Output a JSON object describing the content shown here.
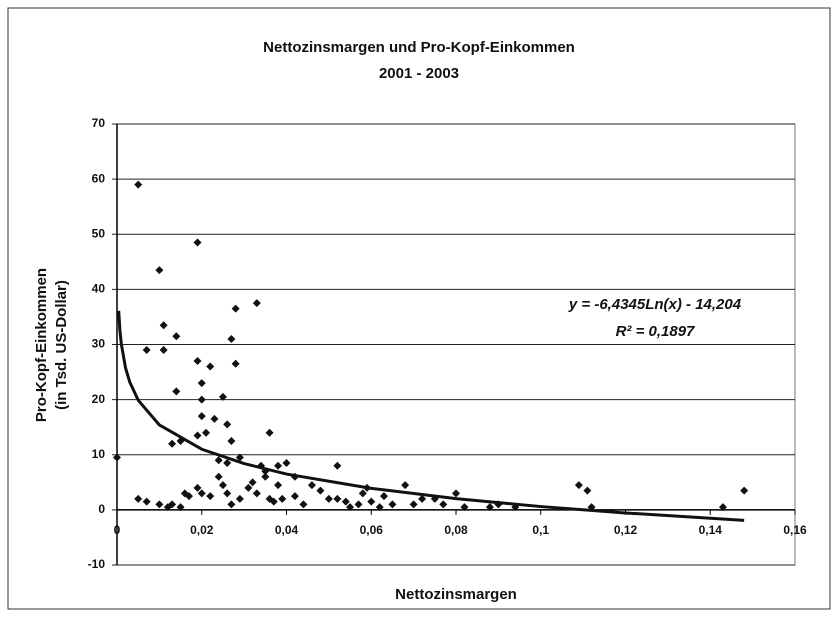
{
  "chart_data": {
    "type": "scatter",
    "title": [
      "Nettozinsmargen und Pro-Kopf-Einkommen",
      "2001 - 2003"
    ],
    "x_label": "Nettozinsmargen",
    "y_label": [
      "Pro-Kopf-Einkommen",
      "(in Tsd. US-Dollar)"
    ],
    "annotations": [
      "y = -6,4345Ln(x) - 14,204",
      "R² = 0,1897"
    ],
    "xlim": [
      0,
      0.16
    ],
    "xticks": [
      {
        "value": 0,
        "label": "0"
      },
      {
        "value": 0.02,
        "label": "0,02"
      },
      {
        "value": 0.04,
        "label": "0,04"
      },
      {
        "value": 0.06,
        "label": "0,06"
      },
      {
        "value": 0.08,
        "label": "0,08"
      },
      {
        "value": 0.1,
        "label": "0,1"
      },
      {
        "value": 0.12,
        "label": "0,12"
      },
      {
        "value": 0.14,
        "label": "0,14"
      },
      {
        "value": 0.16,
        "label": "0,16"
      }
    ],
    "ylim": [
      -10,
      70
    ],
    "yticks": [
      -10,
      0,
      10,
      20,
      30,
      40,
      50,
      60,
      70
    ],
    "grid": true,
    "series": [
      {
        "color": "#111111",
        "x": [
          0.0,
          0.005,
          0.007,
          0.01,
          0.011,
          0.011,
          0.014,
          0.014,
          0.013,
          0.015,
          0.019,
          0.02,
          0.02,
          0.019,
          0.02,
          0.021,
          0.022,
          0.019,
          0.023,
          0.024,
          0.025,
          0.026,
          0.027,
          0.028,
          0.028,
          0.027,
          0.033,
          0.036,
          0.026,
          0.024,
          0.029,
          0.034,
          0.035,
          0.038,
          0.04,
          0.042,
          0.052,
          0.005,
          0.007,
          0.01,
          0.012,
          0.013,
          0.015,
          0.016,
          0.017,
          0.019,
          0.02,
          0.022,
          0.025,
          0.026,
          0.027,
          0.029,
          0.031,
          0.032,
          0.033,
          0.035,
          0.036,
          0.037,
          0.038,
          0.039,
          0.042,
          0.044,
          0.046,
          0.048,
          0.05,
          0.052,
          0.054,
          0.055,
          0.057,
          0.058,
          0.059,
          0.06,
          0.062,
          0.063,
          0.065,
          0.068,
          0.07,
          0.072,
          0.075,
          0.077,
          0.08,
          0.082,
          0.088,
          0.09,
          0.094,
          0.109,
          0.111,
          0.112,
          0.143,
          0.148
        ],
        "values": [
          9.5,
          59,
          29,
          43.5,
          33.5,
          29,
          31.5,
          21.5,
          12,
          12.5,
          27,
          23,
          20,
          48.5,
          17,
          14,
          26,
          13.5,
          16.5,
          9,
          20.5,
          15.5,
          31,
          26.5,
          36.5,
          12.5,
          37.5,
          14,
          8.5,
          6,
          9.5,
          8,
          7,
          8,
          8.5,
          6,
          8,
          2,
          1.5,
          1,
          0.5,
          1,
          0.5,
          3,
          2.5,
          4,
          3,
          2.5,
          4.5,
          3,
          1,
          2,
          4,
          5,
          3,
          6,
          2,
          1.5,
          4.5,
          2,
          2.5,
          1,
          4.5,
          3.5,
          2,
          2,
          1.5,
          0.5,
          1,
          3,
          4,
          1.5,
          0.5,
          2.5,
          1,
          4.5,
          1,
          2,
          2,
          1,
          3,
          0.5,
          0.5,
          1,
          0.5,
          4.5,
          3.5,
          0.5,
          0.5,
          3.5
        ]
      },
      {
        "type": "line",
        "color": "#111111",
        "x": [
          0.0004,
          0.0007,
          0.001,
          0.002,
          0.003,
          0.005,
          0.01,
          0.02,
          0.03,
          0.04,
          0.06,
          0.08,
          0.1,
          0.12,
          0.148
        ],
        "values": [
          36.1,
          32.5,
          30.2,
          25.8,
          23.2,
          19.9,
          15.4,
          11.0,
          8.4,
          6.5,
          3.9,
          2.05,
          0.6,
          -0.56,
          -1.9
        ]
      }
    ]
  }
}
